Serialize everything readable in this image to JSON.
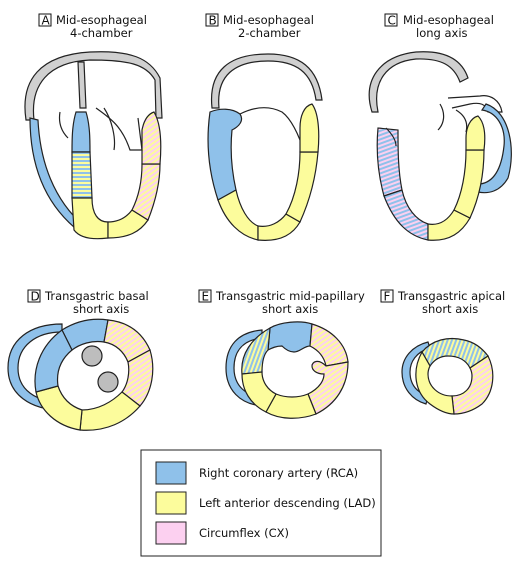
{
  "colors": {
    "rca": "#8fc1ea",
    "lad": "#fcfc9c",
    "cx": "#fcd0f0",
    "outline": "#222222",
    "aorta_gray": "#d0d0d0",
    "papillary": "#bdbdbd"
  },
  "panels": {
    "a": {
      "letter": "A",
      "line1": "Mid-esophageal",
      "line2": "4-chamber"
    },
    "b": {
      "letter": "B",
      "line1": "Mid-esophageal",
      "line2": "2-chamber"
    },
    "c": {
      "letter": "C",
      "line1": "Mid-esophageal",
      "line2": "long axis"
    },
    "d": {
      "letter": "D",
      "line1": "Transgastric basal",
      "line2": "short axis"
    },
    "e": {
      "letter": "E",
      "line1": "Transgastric mid-papillary",
      "line2": "short axis"
    },
    "f": {
      "letter": "F",
      "line1": "Transgastric apical",
      "line2": "short axis"
    }
  },
  "legend": {
    "items": [
      {
        "label": "Right coronary artery (RCA)",
        "color": "rca"
      },
      {
        "label": "Left anterior descending (LAD)",
        "color": "lad"
      },
      {
        "label": "Circumflex (CX)",
        "color": "cx"
      }
    ]
  }
}
